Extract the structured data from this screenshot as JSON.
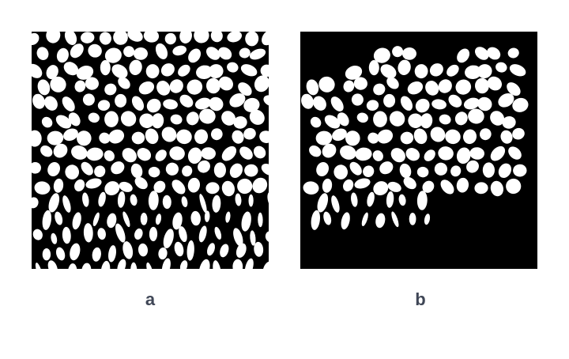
{
  "panels": [
    {
      "id": "a",
      "label": "a"
    },
    {
      "id": "b",
      "label": "b"
    }
  ],
  "colors": {
    "foreground": "#ffffff",
    "background": "#000000",
    "label": "#3f4656"
  }
}
